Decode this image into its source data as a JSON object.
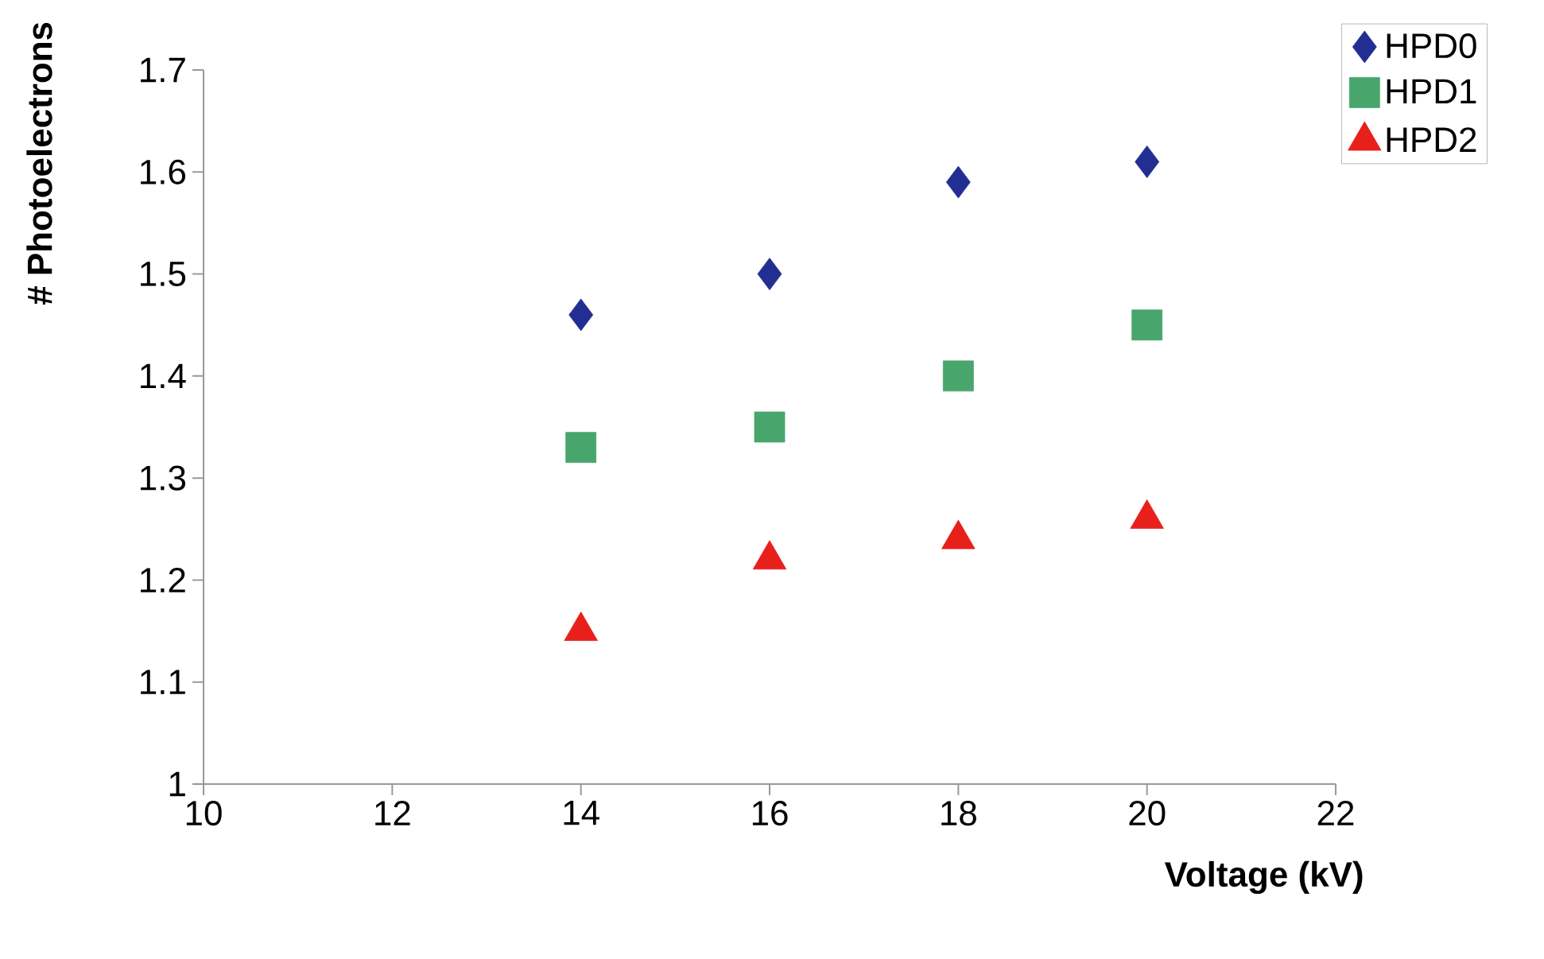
{
  "chart_data": {
    "type": "scatter",
    "xlabel": "Voltage (kV)",
    "ylabel": "# Photoelectrons",
    "xlim": [
      10,
      22
    ],
    "xticks": [
      10,
      12,
      14,
      16,
      18,
      20,
      22
    ],
    "ylim": [
      1,
      1.7
    ],
    "yticks": [
      1,
      1.1,
      1.2,
      1.3,
      1.4,
      1.5,
      1.6,
      1.7
    ],
    "grid": false,
    "legend": "top right",
    "series": [
      {
        "name": "HPD0",
        "color": "#232e92",
        "marker": "diamond",
        "x": [
          14,
          16,
          18,
          20
        ],
        "values": [
          1.46,
          1.5,
          1.59,
          1.61
        ]
      },
      {
        "name": "HPD1",
        "color": "#48a66c",
        "marker": "square",
        "x": [
          14,
          16,
          18,
          20
        ],
        "values": [
          1.33,
          1.35,
          1.4,
          1.45
        ]
      },
      {
        "name": "HPD2",
        "color": "#e8201c",
        "marker": "triangle",
        "x": [
          14,
          16,
          18,
          20
        ],
        "values": [
          1.15,
          1.22,
          1.24,
          1.26
        ]
      }
    ]
  }
}
